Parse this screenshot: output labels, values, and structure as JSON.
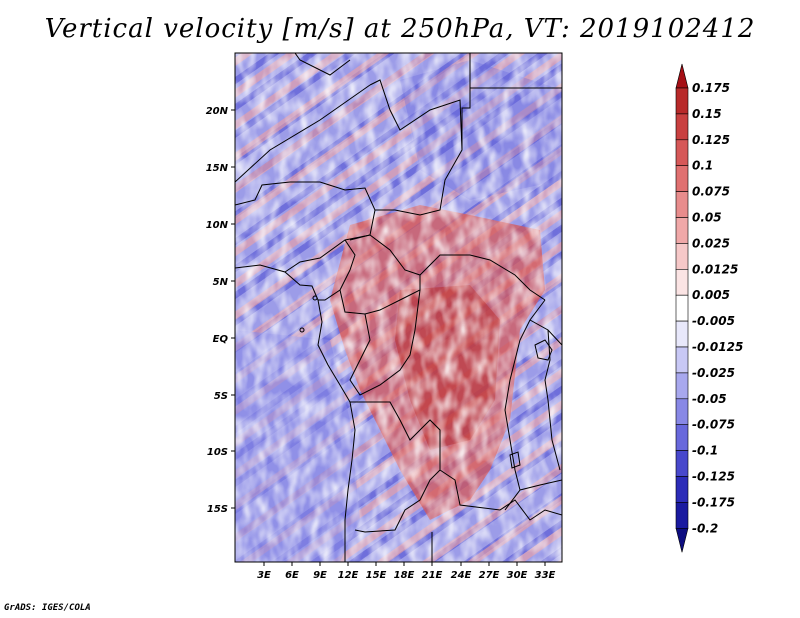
{
  "title": "Vertical velocity [m/s] at 250hPa, VT: 2019102412",
  "credit": "GrADS: IGES/COLA",
  "map": {
    "lat_ticks": [
      "20N",
      "15N",
      "10N",
      "5N",
      "EQ",
      "5S",
      "10S",
      "15S"
    ],
    "lon_ticks": [
      "3E",
      "6E",
      "9E",
      "12E",
      "15E",
      "18E",
      "21E",
      "24E",
      "27E",
      "30E",
      "33E"
    ]
  },
  "colorbar": {
    "levels": [
      "0.175",
      "0.15",
      "0.125",
      "0.1",
      "0.075",
      "0.05",
      "0.025",
      "0.0125",
      "0.005",
      "-0.005",
      "-0.0125",
      "-0.025",
      "-0.05",
      "-0.075",
      "-0.1",
      "-0.125",
      "-0.175",
      "-0.2"
    ],
    "colors": [
      "#a50f15",
      "#b82a2a",
      "#c94040",
      "#d65858",
      "#e07070",
      "#e88c8c",
      "#f0a8a8",
      "#f6c8c8",
      "#fbe4e4",
      "#ffffff",
      "#e8e8fb",
      "#c8c8f5",
      "#a8a8ee",
      "#8888e6",
      "#6868dc",
      "#4848cc",
      "#2c2cb8",
      "#1a1aa0",
      "#0d0d80"
    ]
  }
}
